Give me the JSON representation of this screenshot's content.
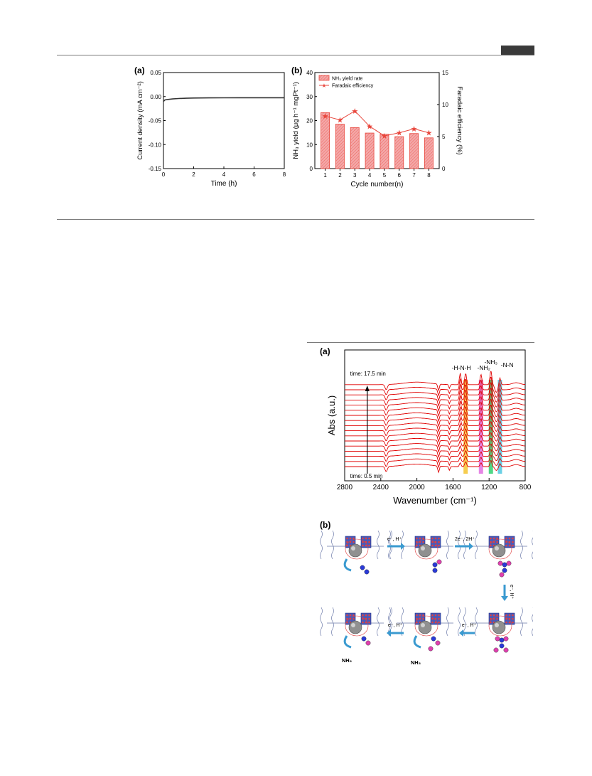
{
  "figure1": {
    "panel_a": {
      "label": "(a)"
    },
    "panel_b": {
      "label": "(b)"
    }
  },
  "figure2": {
    "panel_a": {
      "label": "(a)"
    },
    "panel_b": {
      "label": "(b)",
      "step_labels": [
        "e⁻, H⁺",
        "2e⁻, 2H⁺",
        "e⁻, H⁺",
        "e⁻, H⁺",
        "e⁻, H⁺"
      ],
      "product_labels": [
        "NH₃",
        "NH₃"
      ]
    }
  },
  "chart_data": [
    {
      "type": "line",
      "xlabel": "Time (h)",
      "ylabel": "Current density (mA cm⁻²)",
      "xlim": [
        0,
        8
      ],
      "ylim": [
        -0.15,
        0.05
      ],
      "xticks": [
        "0",
        "2",
        "4",
        "6",
        "8"
      ],
      "yticks": [
        "0.05",
        "0.00",
        "-0.05",
        "-0.10",
        "-0.15"
      ],
      "grid": false,
      "series": [
        {
          "x": [
            0,
            0.1,
            0.3,
            0.6,
            1,
            1.5,
            2,
            3,
            4,
            5,
            6,
            7,
            8
          ],
          "y": [
            -0.01,
            -0.007,
            -0.006,
            -0.005,
            -0.004,
            -0.0035,
            -0.003,
            -0.0028,
            -0.0026,
            -0.0025,
            -0.0024,
            -0.0024,
            -0.0024
          ]
        }
      ]
    },
    {
      "type": "bar",
      "xlabel": "Cycle number(n)",
      "ylabel": "NH₃ yield (μg h⁻¹ mgPt⁻¹)",
      "y2label": "Faradaic efficiency (%)",
      "categories": [
        "1",
        "2",
        "3",
        "4",
        "5",
        "6",
        "7",
        "8"
      ],
      "ylim": [
        0,
        40
      ],
      "y2lim": [
        0,
        15
      ],
      "yticks": [
        "0",
        "10",
        "20",
        "30",
        "40"
      ],
      "y2ticks": [
        "0",
        "5",
        "10",
        "15"
      ],
      "legend_position": "top-left",
      "series": [
        {
          "name": "NH₃ yield rate",
          "values": [
            23.3,
            18.5,
            17.1,
            14.8,
            14.3,
            13.3,
            14.6,
            12.8
          ]
        },
        {
          "name": "Faradaic efficiency",
          "values": [
            8.2,
            7.6,
            9.0,
            6.6,
            5.1,
            5.6,
            6.2,
            5.6
          ]
        }
      ],
      "colors": {
        "bar_fill": "#f4a8a8",
        "bar_edge": "#e8463c",
        "line": "#e8463c"
      }
    },
    {
      "type": "line",
      "xlabel": "Wavenumber (cm⁻¹)",
      "ylabel": "Abs (a.u.)",
      "xlim": [
        2800,
        800
      ],
      "xticks": [
        "2800",
        "2400",
        "2000",
        "1600",
        "1200",
        "800"
      ],
      "annotations": [
        "time: 17.5 min",
        "time: 0.5 min",
        "-H-N-H",
        "-NH₂",
        "-NH₃",
        "-N-N"
      ],
      "band_centers": [
        1460,
        1290,
        1180,
        1080
      ],
      "band_colors": [
        "#f4c430",
        "#e070e0",
        "#30d070",
        "#50c8e0"
      ],
      "spectra_count": 17,
      "colors": {
        "spectrum": "#e00000"
      }
    }
  ]
}
